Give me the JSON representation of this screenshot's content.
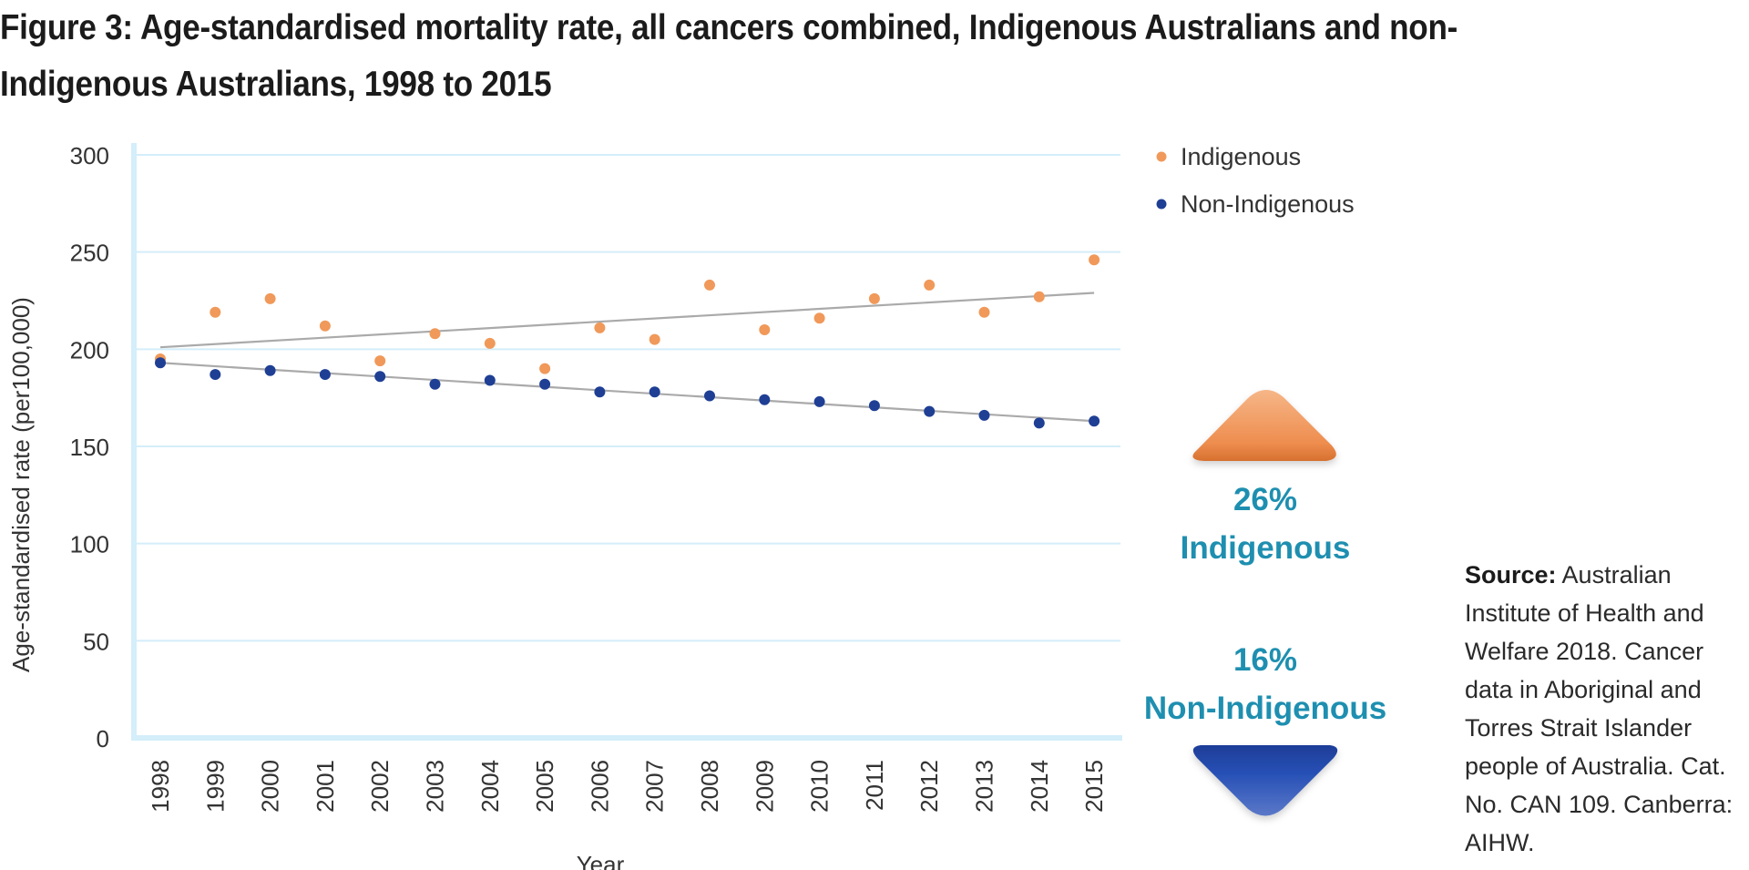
{
  "figure": {
    "title": "Figure 3: Age-standardised mortality rate, all cancers combined, Indigenous Australians and non-Indigenous Australians, 1998 to 2015"
  },
  "chart_data": {
    "type": "scatter",
    "title": "Figure 3: Age-standardised mortality rate, all cancers combined, Indigenous Australians and non-Indigenous Australians, 1998 to 2015",
    "xlabel": "Year",
    "ylabel": "Age-standardised rate (per100,000)",
    "ylim": [
      0,
      300
    ],
    "yticks": [
      0,
      50,
      100,
      150,
      200,
      250,
      300
    ],
    "grid": true,
    "legend_position": "top-right",
    "categories": [
      "1998",
      "1999",
      "2000",
      "2001",
      "2002",
      "2003",
      "2004",
      "2005",
      "2006",
      "2007",
      "2008",
      "2009",
      "2010",
      "2011",
      "2012",
      "2013",
      "2014",
      "2015"
    ],
    "series": [
      {
        "name": "Indigenous",
        "color": "#f0995a",
        "values": [
          195,
          219,
          226,
          212,
          194,
          208,
          203,
          190,
          211,
          205,
          233,
          210,
          216,
          226,
          233,
          219,
          227,
          246
        ],
        "trendline": {
          "start": 201,
          "end": 229,
          "color": "#aaaaaa"
        }
      },
      {
        "name": "Non-Indigenous",
        "color": "#1f3f95",
        "values": [
          193,
          187,
          189,
          187,
          186,
          182,
          184,
          182,
          178,
          178,
          176,
          174,
          173,
          171,
          168,
          166,
          162,
          163
        ],
        "trendline": {
          "start": 193,
          "end": 163,
          "color": "#aaaaaa"
        }
      }
    ],
    "annotations": {
      "indigenous_change": {
        "percent": "26%",
        "label": "Indigenous",
        "direction": "up",
        "color": "#f0995a"
      },
      "non_indigenous_change": {
        "percent": "16%",
        "label": "Non-Indigenous",
        "direction": "down",
        "color": "#1f3f95"
      }
    }
  },
  "source": {
    "label": "Source:",
    "text": "Australian Institute of Health and Welfare 2018. Cancer data in Aboriginal and Torres Strait Islander people of Australia. Cat. No. CAN 109. Canberra: AIHW."
  },
  "colors": {
    "gridline": "#d4eefa",
    "axis": "#d4eefa",
    "annotation_text": "#1e8fb0"
  }
}
